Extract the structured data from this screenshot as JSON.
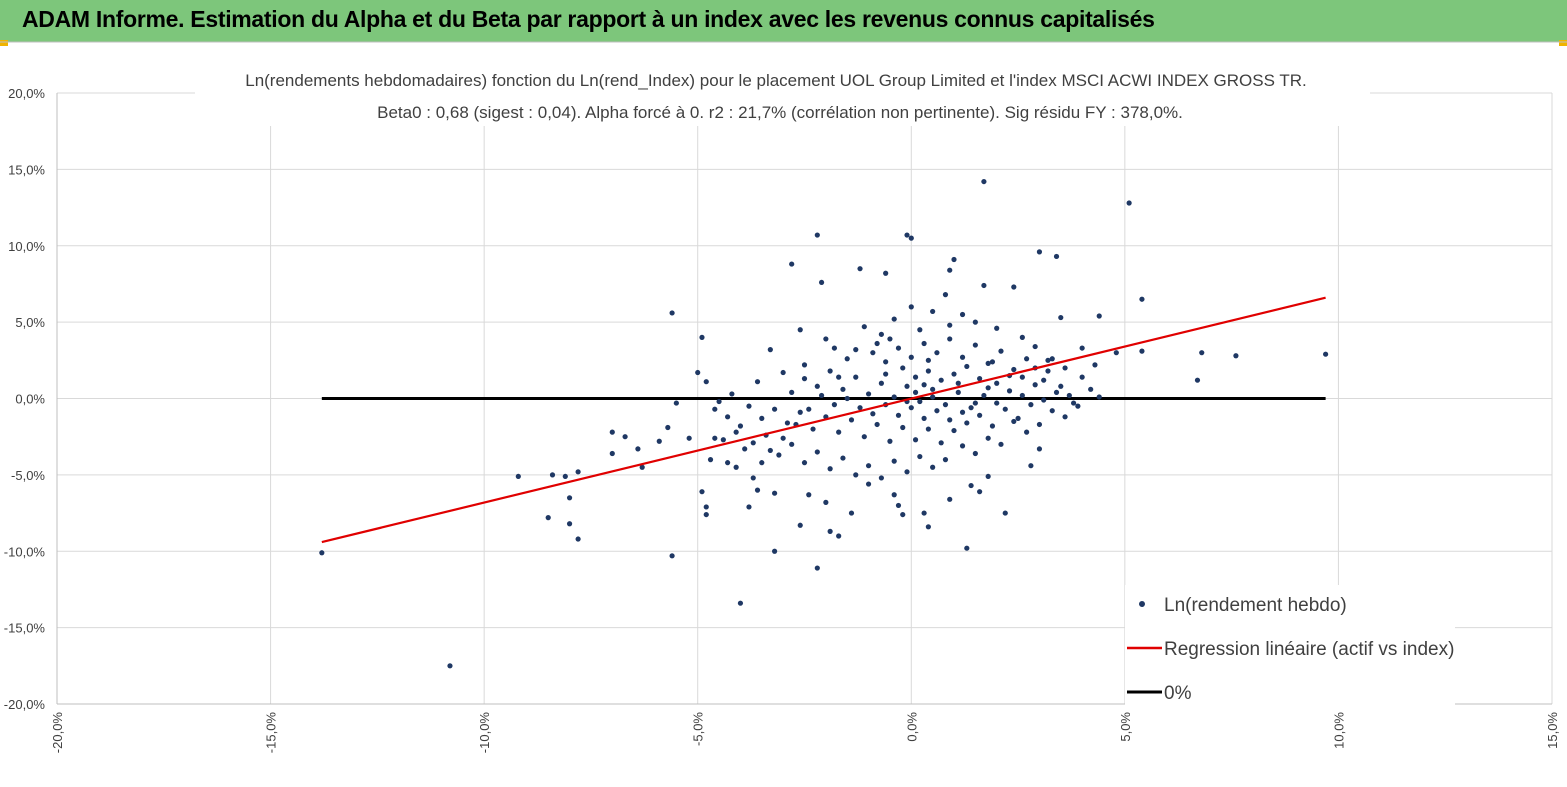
{
  "header": {
    "title": "ADAM Informe. Estimation du Alpha et du Beta par rapport à un index avec les revenus connus capitalisés",
    "background": "#7dc67b"
  },
  "chart_data": {
    "type": "scatter",
    "title_line1": "Ln(rendements hebdomadaires) fonction du Ln(rend_Index) pour le placement UOL Group Limited et l'index MSCI ACWI INDEX GROSS TR.",
    "title_line2": "Beta0 : 0,68 (sigest : 0,04). Alpha forcé à 0. r2 : 21,7% (corrélation non pertinente). Sig résidu FY : 378,0%.",
    "xlim": [
      -0.2,
      0.15
    ],
    "ylim": [
      -0.2,
      0.2
    ],
    "x_ticks": [
      -0.2,
      -0.15,
      -0.1,
      -0.05,
      0.0,
      0.05,
      0.1,
      0.15
    ],
    "y_ticks": [
      -0.2,
      -0.15,
      -0.1,
      -0.05,
      0.0,
      0.05,
      0.1,
      0.15,
      0.2
    ],
    "x_tick_labels": [
      "-20,0%",
      "-15,0%",
      "-10,0%",
      "-5,0%",
      "0,0%",
      "5,0%",
      "10,0%",
      "15,0%"
    ],
    "y_tick_labels": [
      "-20,0%",
      "-15,0%",
      "-10,0%",
      "-5,0%",
      "0,0%",
      "5,0%",
      "10,0%",
      "15,0%",
      "20,0%"
    ],
    "grid": true,
    "legend_placement": "bottom-right",
    "legend": [
      {
        "label": "Ln(rendement hebdo)",
        "kind": "marker",
        "color": "#1f3864"
      },
      {
        "label": "Regression linéaire (actif vs index)",
        "kind": "line",
        "color": "#e00000"
      },
      {
        "label": "0%",
        "kind": "line",
        "color": "#000000"
      }
    ],
    "regression": {
      "name": "Regression linéaire (actif vs index)",
      "x": [
        -0.138,
        0.097
      ],
      "y": [
        -0.094,
        0.066
      ],
      "color": "#e00000"
    },
    "zero_line": {
      "name": "0%",
      "x": [
        -0.138,
        0.097
      ],
      "y": [
        0.0,
        0.0
      ],
      "color": "#000000"
    },
    "series": [
      {
        "name": "Ln(rendement hebdo)",
        "color": "#1f3864",
        "points": [
          [
            0.017,
            0.142
          ],
          [
            0.051,
            0.128
          ],
          [
            -0.022,
            0.107
          ],
          [
            -0.001,
            0.107
          ],
          [
            0.0,
            0.105
          ],
          [
            0.03,
            0.096
          ],
          [
            0.034,
            0.093
          ],
          [
            -0.028,
            0.088
          ],
          [
            0.01,
            0.091
          ],
          [
            0.009,
            0.084
          ],
          [
            -0.012,
            0.085
          ],
          [
            -0.006,
            0.082
          ],
          [
            -0.021,
            0.076
          ],
          [
            0.017,
            0.074
          ],
          [
            0.024,
            0.073
          ],
          [
            0.054,
            0.065
          ],
          [
            -0.056,
            0.056
          ],
          [
            -0.049,
            0.04
          ],
          [
            0.044,
            0.054
          ],
          [
            0.035,
            0.053
          ],
          [
            0.054,
            0.031
          ],
          [
            0.068,
            0.03
          ],
          [
            0.076,
            0.028
          ],
          [
            0.097,
            0.029
          ],
          [
            0.067,
            0.012
          ],
          [
            0.048,
            0.03
          ],
          [
            0.044,
            0.001
          ],
          [
            0.037,
            0.002
          ],
          [
            -0.05,
            0.017
          ],
          [
            -0.048,
            0.011
          ],
          [
            -0.045,
            -0.002
          ],
          [
            -0.046,
            -0.026
          ],
          [
            -0.055,
            -0.003
          ],
          [
            -0.059,
            -0.028
          ],
          [
            -0.057,
            -0.019
          ],
          [
            -0.063,
            -0.045
          ],
          [
            -0.064,
            -0.033
          ],
          [
            -0.067,
            -0.025
          ],
          [
            -0.07,
            -0.022
          ],
          [
            -0.07,
            -0.036
          ],
          [
            -0.078,
            -0.048
          ],
          [
            -0.081,
            -0.051
          ],
          [
            -0.08,
            -0.065
          ],
          [
            -0.084,
            -0.05
          ],
          [
            -0.085,
            -0.078
          ],
          [
            -0.08,
            -0.082
          ],
          [
            -0.078,
            -0.092
          ],
          [
            -0.092,
            -0.051
          ],
          [
            -0.138,
            -0.101
          ],
          [
            -0.108,
            -0.175
          ],
          [
            -0.056,
            -0.103
          ],
          [
            -0.04,
            -0.134
          ],
          [
            -0.032,
            -0.1
          ],
          [
            -0.022,
            -0.111
          ],
          [
            -0.017,
            -0.09
          ],
          [
            -0.014,
            -0.075
          ],
          [
            0.013,
            -0.098
          ],
          [
            0.004,
            -0.084
          ],
          [
            -0.049,
            -0.061
          ],
          [
            -0.048,
            -0.071
          ],
          [
            -0.048,
            -0.076
          ],
          [
            -0.043,
            -0.042
          ],
          [
            -0.041,
            -0.045
          ],
          [
            -0.038,
            -0.071
          ],
          [
            -0.036,
            -0.06
          ],
          [
            -0.032,
            -0.062
          ],
          [
            -0.026,
            -0.083
          ],
          [
            -0.019,
            -0.087
          ],
          [
            0.022,
            -0.075
          ],
          [
            0.016,
            -0.061
          ],
          [
            0.009,
            -0.066
          ],
          [
            -0.004,
            -0.063
          ],
          [
            -0.003,
            -0.07
          ],
          [
            -0.002,
            -0.076
          ],
          [
            0.003,
            -0.075
          ],
          [
            -0.02,
            -0.068
          ],
          [
            -0.024,
            -0.063
          ],
          [
            -0.01,
            -0.056
          ],
          [
            0.028,
            -0.044
          ],
          [
            0.03,
            -0.033
          ],
          [
            0.018,
            -0.051
          ],
          [
            0.014,
            -0.057
          ],
          [
            -0.036,
            0.011
          ],
          [
            -0.033,
            0.032
          ],
          [
            -0.03,
            0.017
          ],
          [
            -0.026,
            0.045
          ],
          [
            -0.02,
            0.039
          ],
          [
            -0.025,
            0.013
          ],
          [
            -0.018,
            0.033
          ],
          [
            -0.015,
            0.026
          ],
          [
            -0.011,
            0.047
          ],
          [
            -0.007,
            0.042
          ],
          [
            -0.004,
            0.052
          ],
          [
            0.0,
            0.06
          ],
          [
            0.005,
            0.057
          ],
          [
            0.009,
            0.048
          ],
          [
            0.012,
            0.055
          ],
          [
            0.015,
            0.05
          ],
          [
            0.02,
            0.046
          ],
          [
            0.026,
            0.04
          ],
          [
            0.029,
            0.034
          ],
          [
            0.032,
            0.025
          ],
          [
            0.036,
            0.02
          ],
          [
            0.04,
            0.014
          ],
          [
            0.042,
            0.006
          ],
          [
            0.039,
            -0.005
          ],
          [
            0.036,
            -0.012
          ],
          [
            0.033,
            -0.008
          ],
          [
            0.03,
            -0.017
          ],
          [
            0.027,
            -0.022
          ],
          [
            0.024,
            -0.015
          ],
          [
            0.021,
            -0.03
          ],
          [
            0.018,
            -0.026
          ],
          [
            0.015,
            -0.036
          ],
          [
            0.012,
            -0.031
          ],
          [
            0.008,
            -0.04
          ],
          [
            0.005,
            -0.045
          ],
          [
            0.002,
            -0.038
          ],
          [
            -0.001,
            -0.048
          ],
          [
            -0.004,
            -0.041
          ],
          [
            -0.007,
            -0.052
          ],
          [
            -0.01,
            -0.044
          ],
          [
            -0.013,
            -0.05
          ],
          [
            -0.016,
            -0.039
          ],
          [
            -0.019,
            -0.046
          ],
          [
            -0.022,
            -0.035
          ],
          [
            -0.025,
            -0.042
          ],
          [
            -0.028,
            -0.03
          ],
          [
            -0.031,
            -0.037
          ],
          [
            -0.034,
            -0.024
          ],
          [
            -0.037,
            -0.029
          ],
          [
            -0.04,
            -0.018
          ],
          [
            -0.043,
            -0.012
          ],
          [
            -0.046,
            -0.007
          ],
          [
            -0.042,
            0.003
          ],
          [
            -0.038,
            -0.005
          ],
          [
            -0.035,
            -0.013
          ],
          [
            -0.032,
            -0.007
          ],
          [
            -0.029,
            -0.016
          ],
          [
            -0.026,
            -0.009
          ],
          [
            -0.023,
            -0.02
          ],
          [
            -0.02,
            -0.012
          ],
          [
            -0.017,
            -0.022
          ],
          [
            -0.014,
            -0.014
          ],
          [
            -0.011,
            -0.025
          ],
          [
            -0.008,
            -0.017
          ],
          [
            -0.005,
            -0.028
          ],
          [
            -0.002,
            -0.019
          ],
          [
            0.001,
            -0.027
          ],
          [
            0.004,
            -0.02
          ],
          [
            0.007,
            -0.029
          ],
          [
            0.01,
            -0.021
          ],
          [
            0.013,
            -0.016
          ],
          [
            0.016,
            -0.011
          ],
          [
            0.019,
            -0.018
          ],
          [
            0.022,
            -0.007
          ],
          [
            0.025,
            -0.013
          ],
          [
            0.028,
            -0.004
          ],
          [
            0.031,
            -0.001
          ],
          [
            0.034,
            0.004
          ],
          [
            -0.028,
            0.004
          ],
          [
            -0.025,
            0.022
          ],
          [
            -0.022,
            0.008
          ],
          [
            -0.019,
            0.018
          ],
          [
            -0.016,
            0.006
          ],
          [
            -0.013,
            0.014
          ],
          [
            -0.01,
            0.003
          ],
          [
            -0.007,
            0.01
          ],
          [
            -0.004,
            0.001
          ],
          [
            -0.001,
            0.008
          ],
          [
            0.002,
            -0.002
          ],
          [
            0.005,
            0.006
          ],
          [
            0.008,
            -0.004
          ],
          [
            0.011,
            0.004
          ],
          [
            0.014,
            -0.006
          ],
          [
            0.017,
            0.002
          ],
          [
            0.02,
            0.01
          ],
          [
            0.023,
            0.005
          ],
          [
            0.026,
            0.014
          ],
          [
            0.029,
            0.009
          ],
          [
            0.032,
            0.018
          ],
          [
            0.006,
            0.03
          ],
          [
            0.003,
            0.036
          ],
          [
            0.0,
            0.027
          ],
          [
            -0.003,
            0.033
          ],
          [
            -0.006,
            0.024
          ],
          [
            -0.009,
            0.03
          ],
          [
            0.009,
            0.039
          ],
          [
            0.012,
            0.027
          ],
          [
            0.015,
            0.035
          ],
          [
            0.018,
            0.023
          ],
          [
            0.021,
            0.031
          ],
          [
            0.024,
            0.019
          ],
          [
            0.027,
            0.026
          ],
          [
            0.007,
            0.012
          ],
          [
            0.004,
            0.018
          ],
          [
            0.001,
            0.014
          ],
          [
            -0.002,
            0.02
          ],
          [
            0.01,
            0.016
          ],
          [
            0.013,
            0.021
          ],
          [
            0.016,
            0.013
          ],
          [
            0.019,
            0.024
          ],
          [
            -0.012,
            -0.006
          ],
          [
            -0.009,
            -0.01
          ],
          [
            -0.006,
            -0.004
          ],
          [
            -0.003,
            -0.011
          ],
          [
            0.0,
            -0.006
          ],
          [
            0.003,
            -0.013
          ],
          [
            0.006,
            -0.008
          ],
          [
            0.009,
            -0.014
          ],
          [
            0.012,
            -0.009
          ],
          [
            0.015,
            -0.003
          ],
          [
            0.018,
            0.007
          ],
          [
            0.002,
            0.045
          ],
          [
            -0.005,
            0.039
          ],
          [
            0.008,
            0.068
          ],
          [
            -0.008,
            0.036
          ],
          [
            -0.013,
            0.032
          ],
          [
            -0.017,
            0.014
          ],
          [
            -0.021,
            0.002
          ],
          [
            -0.024,
            -0.007
          ],
          [
            -0.027,
            -0.017
          ],
          [
            -0.03,
            -0.026
          ],
          [
            -0.033,
            -0.034
          ],
          [
            -0.035,
            -0.042
          ],
          [
            -0.037,
            -0.052
          ],
          [
            -0.039,
            -0.033
          ],
          [
            -0.041,
            -0.022
          ],
          [
            -0.044,
            -0.027
          ],
          [
            -0.047,
            -0.04
          ],
          [
            -0.052,
            -0.026
          ],
          [
            0.001,
            0.004
          ],
          [
            0.003,
            0.009
          ],
          [
            0.005,
            0.001
          ],
          [
            -0.001,
            -0.002
          ],
          [
            0.011,
            0.01
          ],
          [
            -0.015,
            0.0
          ],
          [
            0.02,
            -0.003
          ],
          [
            0.023,
            0.015
          ],
          [
            0.026,
            0.002
          ],
          [
            0.029,
            0.02
          ],
          [
            -0.018,
            -0.004
          ],
          [
            0.031,
            0.012
          ],
          [
            0.033,
            0.026
          ],
          [
            0.035,
            0.008
          ],
          [
            0.038,
            -0.003
          ],
          [
            0.04,
            0.033
          ],
          [
            0.043,
            0.022
          ],
          [
            -0.006,
            0.016
          ],
          [
            0.004,
            0.025
          ]
        ]
      }
    ]
  }
}
